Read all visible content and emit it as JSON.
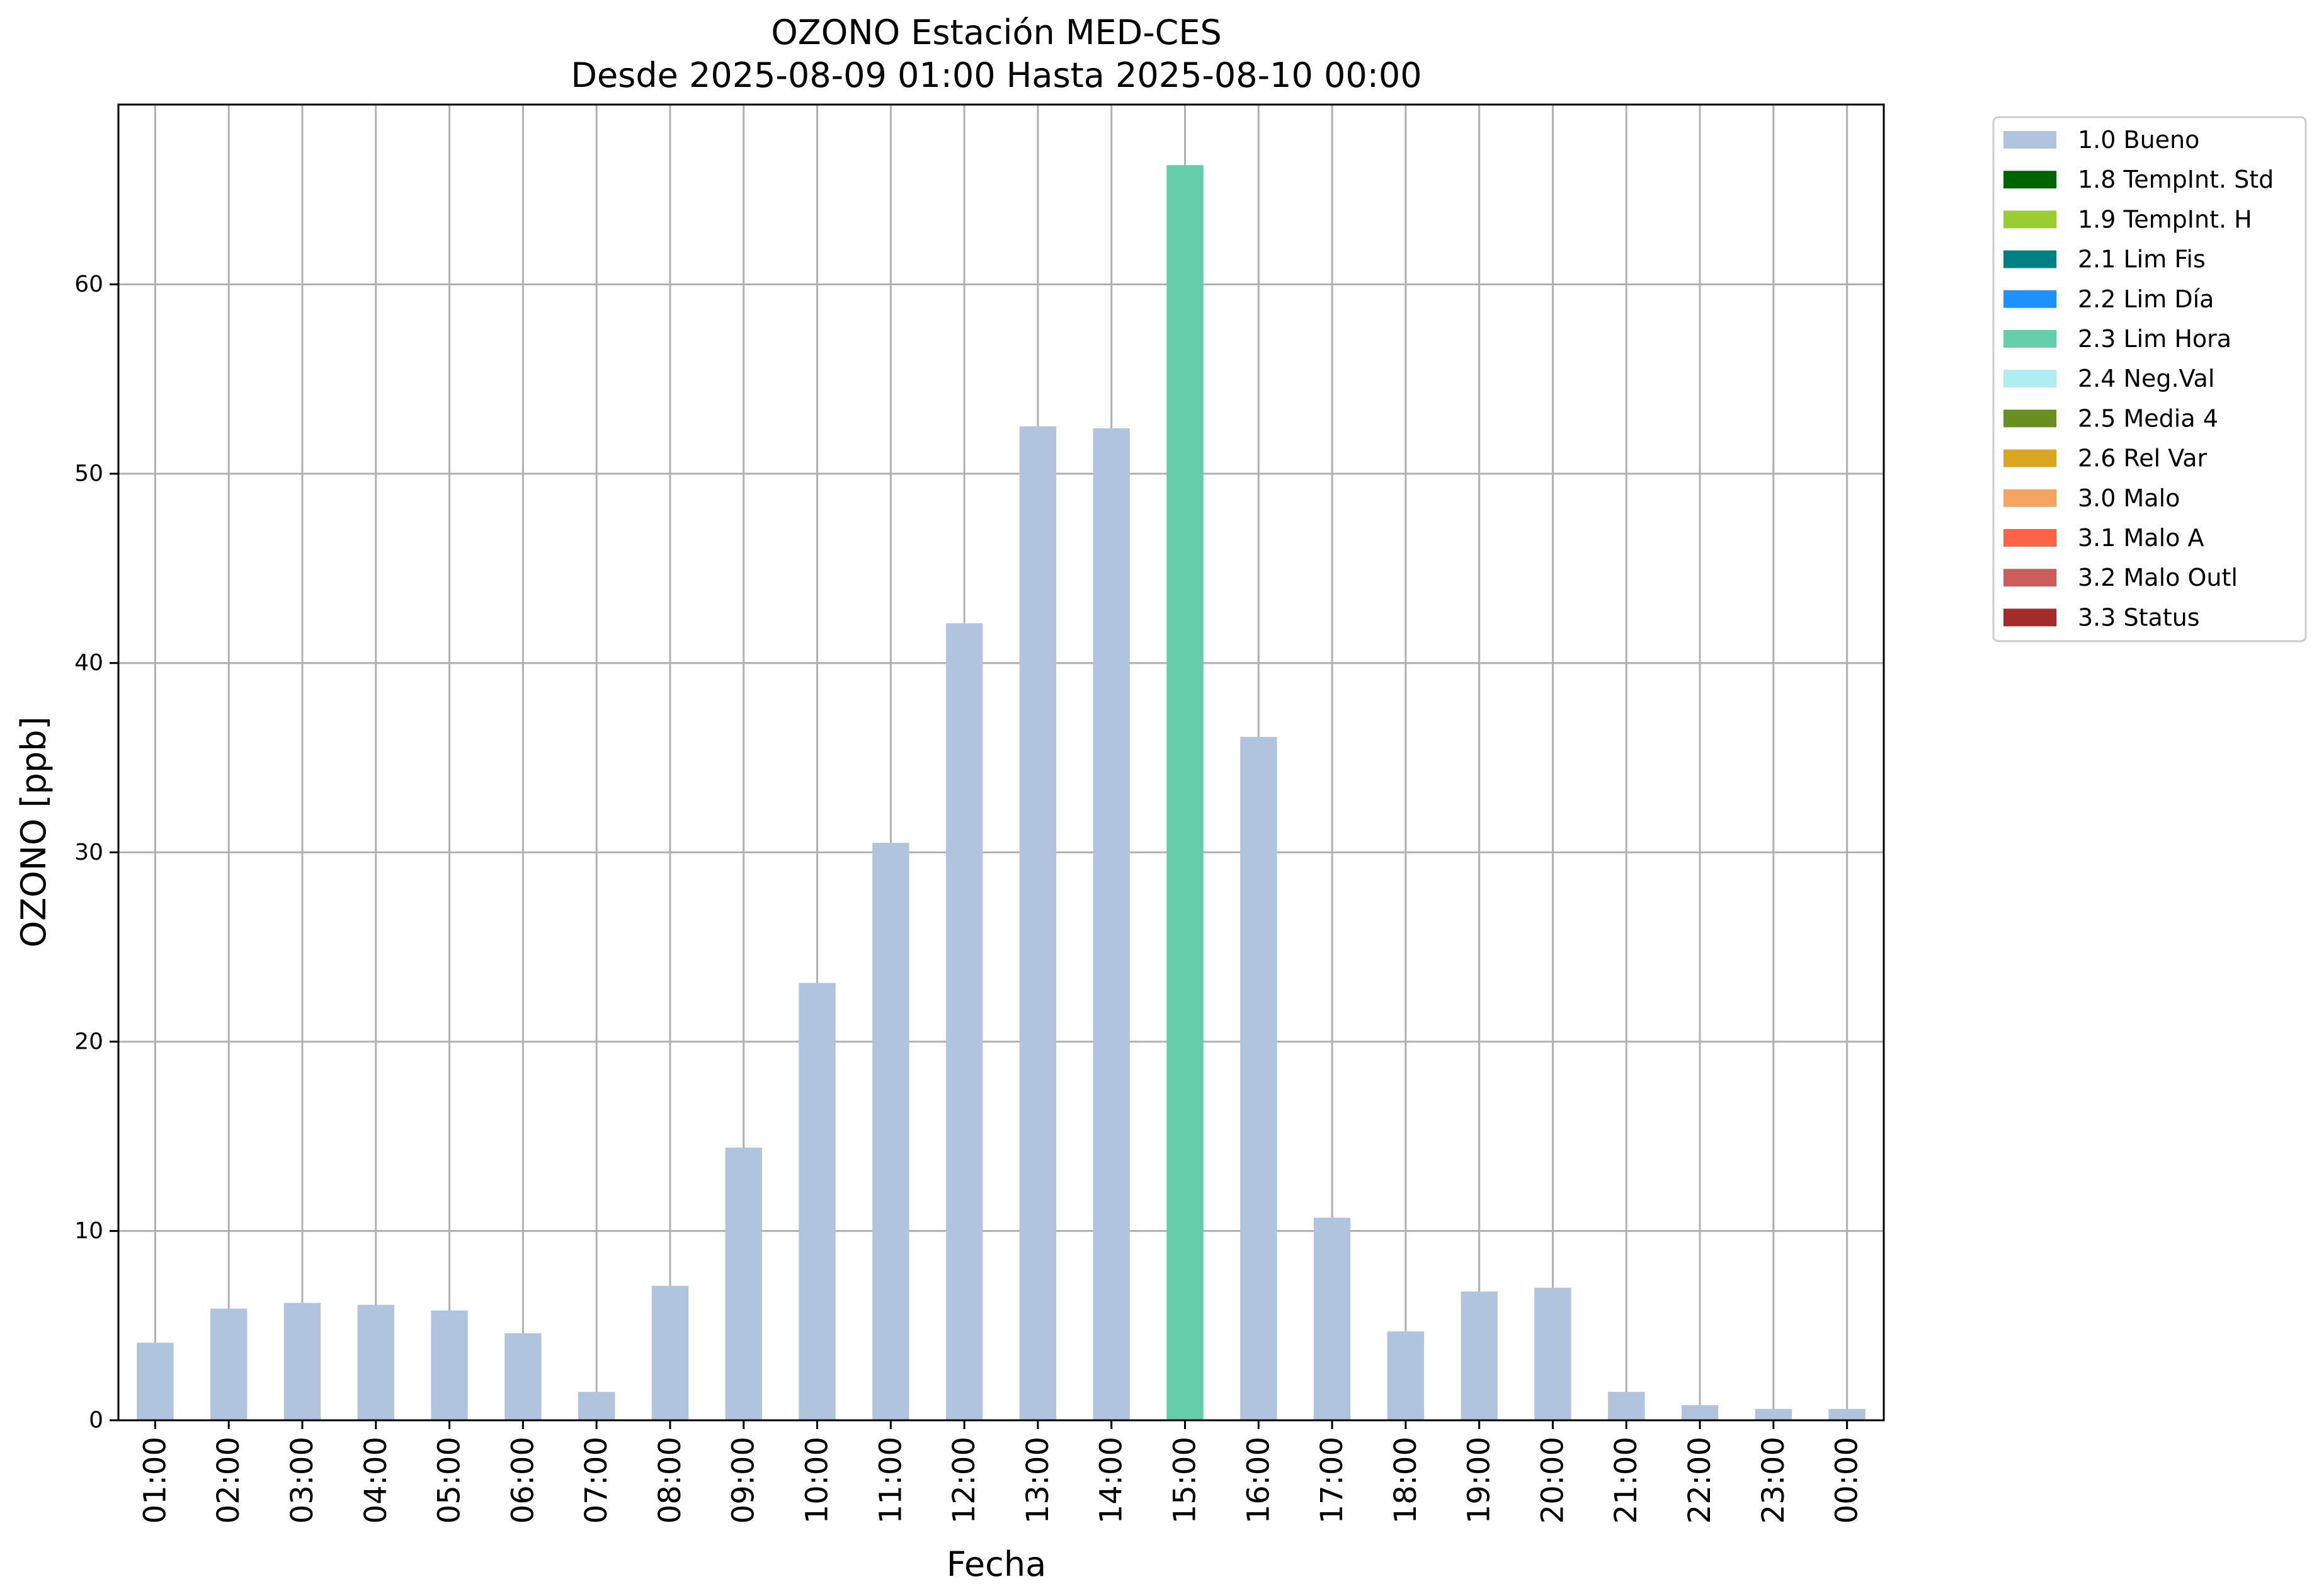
{
  "chart_data": {
    "type": "bar",
    "title": "OZONO Estación MED-CES",
    "subtitle": "Desde 2025-08-09 01:00 Hasta 2025-08-10 00:00",
    "xlabel": "Fecha",
    "ylabel": "OZONO [ppb]",
    "ylim": [
      0,
      69.5
    ],
    "yticks": [
      0,
      10,
      20,
      30,
      40,
      50,
      60
    ],
    "grid": true,
    "legend_position": "outside-right-top",
    "categories": [
      "01:00",
      "02:00",
      "03:00",
      "04:00",
      "05:00",
      "06:00",
      "07:00",
      "08:00",
      "09:00",
      "10:00",
      "11:00",
      "12:00",
      "13:00",
      "14:00",
      "15:00",
      "16:00",
      "17:00",
      "18:00",
      "19:00",
      "20:00",
      "21:00",
      "22:00",
      "23:00",
      "00:00"
    ],
    "values": [
      4.1,
      5.9,
      6.2,
      6.1,
      5.8,
      4.6,
      1.5,
      7.1,
      14.4,
      23.1,
      30.5,
      42.1,
      52.5,
      52.4,
      66.3,
      36.1,
      10.7,
      4.7,
      6.8,
      7.0,
      1.5,
      0.8,
      0.6,
      0.6
    ],
    "flags": [
      "1.0 Bueno",
      "1.0 Bueno",
      "1.0 Bueno",
      "1.0 Bueno",
      "1.0 Bueno",
      "1.0 Bueno",
      "1.0 Bueno",
      "1.0 Bueno",
      "1.0 Bueno",
      "1.0 Bueno",
      "1.0 Bueno",
      "1.0 Bueno",
      "1.0 Bueno",
      "1.0 Bueno",
      "2.3 Lim Hora",
      "1.0 Bueno",
      "1.0 Bueno",
      "1.0 Bueno",
      "1.0 Bueno",
      "1.0 Bueno",
      "1.0 Bueno",
      "1.0 Bueno",
      "1.0 Bueno",
      "1.0 Bueno"
    ],
    "legend": [
      {
        "label": "1.0 Bueno",
        "color": "#b0c4de"
      },
      {
        "label": "1.8 TempInt. Std",
        "color": "#006400"
      },
      {
        "label": "1.9 TempInt. H",
        "color": "#9acd32"
      },
      {
        "label": "2.1 Lim Fis",
        "color": "#008080"
      },
      {
        "label": "2.2 Lim Día",
        "color": "#1e90ff"
      },
      {
        "label": "2.3 Lim Hora",
        "color": "#66cdaa"
      },
      {
        "label": "2.4 Neg.Val",
        "color": "#afeeee"
      },
      {
        "label": "2.5 Media 4",
        "color": "#6b8e23"
      },
      {
        "label": "2.6 Rel Var",
        "color": "#daa520"
      },
      {
        "label": "3.0 Malo",
        "color": "#f4a460"
      },
      {
        "label": "3.1 Malo A",
        "color": "#ff6347"
      },
      {
        "label": "3.2 Malo Outl",
        "color": "#cd5c5c"
      },
      {
        "label": "3.3 Status",
        "color": "#a52a2a"
      }
    ]
  }
}
